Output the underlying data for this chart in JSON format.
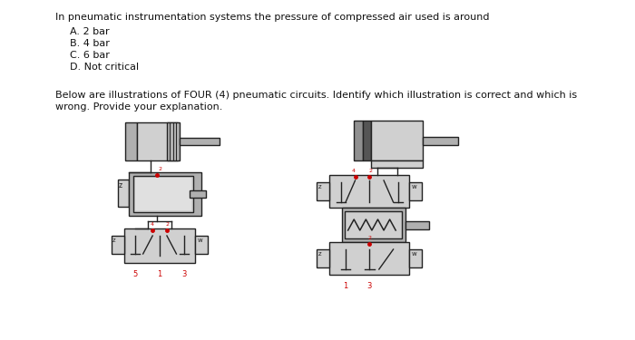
{
  "bg_color": "#ffffff",
  "title_text": "In pneumatic instrumentation systems the pressure of compressed air used is around",
  "options": [
    "A. 2 bar",
    "B. 4 bar",
    "C. 6 bar",
    "D. Not critical"
  ],
  "para_line1": "Below are illustrations of FOUR (4) pneumatic circuits. Identify which illustration is correct and which is",
  "para_line2": "wrong. Provide your explanation.",
  "red_color": "#cc0000",
  "dark_color": "#222222",
  "gray1": "#b0b0b0",
  "gray2": "#d0d0d0",
  "gray3": "#909090"
}
